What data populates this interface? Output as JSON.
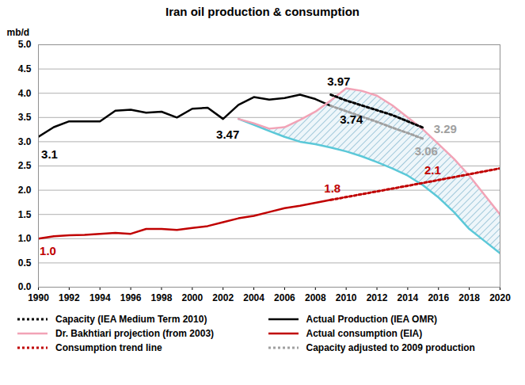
{
  "chart_data": {
    "type": "line",
    "title": "Iran oil production & consumption",
    "y_label": "mb/d",
    "xlim": [
      1990,
      2020
    ],
    "xticks": [
      1990,
      1992,
      1994,
      1996,
      1998,
      2000,
      2002,
      2004,
      2006,
      2008,
      2010,
      2012,
      2014,
      2016,
      2018,
      2020
    ],
    "ylim": [
      0,
      5
    ],
    "yticks": [
      {
        "value": 0,
        "label": "0.0"
      },
      0.5,
      {
        "value": 1,
        "label": "1.0"
      },
      1.5,
      {
        "value": 2,
        "label": "2.0"
      },
      2.5,
      {
        "value": 3,
        "label": "3.0"
      },
      3.5,
      {
        "value": 4,
        "label": "4.0"
      },
      4.5,
      {
        "value": 5,
        "label": "5.0"
      }
    ],
    "grid": true,
    "legend": "bottom",
    "series": [
      {
        "name": "Capacity (IEA Medium Term 2010)",
        "color": "#000000",
        "line_style": "dotted",
        "x": [
          2009,
          2010,
          2011,
          2012,
          2013,
          2014,
          2015
        ],
        "values": [
          3.97,
          3.85,
          3.75,
          3.65,
          3.55,
          3.42,
          3.29
        ]
      },
      {
        "name": "Actual Production (IEA OMR)",
        "color": "#000000",
        "line_style": "solid",
        "x": [
          1990,
          1991,
          1992,
          1993,
          1994,
          1995,
          1996,
          1997,
          1998,
          1999,
          2000,
          2001,
          2002,
          2003,
          2004,
          2005,
          2006,
          2007,
          2008,
          2009
        ],
        "values": [
          3.1,
          3.3,
          3.42,
          3.42,
          3.42,
          3.64,
          3.66,
          3.6,
          3.62,
          3.5,
          3.68,
          3.7,
          3.47,
          3.76,
          3.92,
          3.87,
          3.9,
          3.97,
          3.88,
          3.74
        ]
      },
      {
        "name": "Dr. Bakhtiari projection (from 2003)",
        "color": "#f2a3b6",
        "line_style": "solid",
        "x": [
          2003,
          2004,
          2005,
          2006,
          2007,
          2008,
          2009,
          2010,
          2011,
          2012,
          2013,
          2014,
          2015,
          2016,
          2017,
          2018,
          2019,
          2020
        ],
        "values": [
          3.47,
          3.38,
          3.27,
          3.3,
          3.45,
          3.62,
          3.85,
          4.1,
          4.05,
          3.95,
          3.75,
          3.5,
          3.25,
          2.95,
          2.65,
          2.3,
          1.9,
          1.5
        ]
      },
      {
        "name": "Actual consumption (EIA)",
        "color": "#c00000",
        "line_style": "solid",
        "x": [
          1990,
          1991,
          1992,
          1993,
          1994,
          1995,
          1996,
          1997,
          1998,
          1999,
          2000,
          2001,
          2002,
          2003,
          2004,
          2005,
          2006,
          2007,
          2008,
          2009
        ],
        "values": [
          1.0,
          1.05,
          1.07,
          1.08,
          1.1,
          1.12,
          1.1,
          1.2,
          1.2,
          1.18,
          1.22,
          1.26,
          1.34,
          1.42,
          1.47,
          1.55,
          1.63,
          1.68,
          1.74,
          1.8
        ]
      },
      {
        "name": "Consumption trend line",
        "color": "#c00000",
        "line_style": "dotted",
        "x": [
          2009,
          2015,
          2020
        ],
        "values": [
          1.8,
          2.15,
          2.45
        ]
      },
      {
        "name": "Capacity adjusted to 2009 production",
        "color": "#a0a0a0",
        "line_style": "dotted",
        "x": [
          2009,
          2010,
          2011,
          2012,
          2013,
          2014,
          2015
        ],
        "values": [
          3.74,
          3.63,
          3.52,
          3.41,
          3.29,
          3.18,
          3.06
        ]
      }
    ],
    "band": {
      "color": "#5bc8d8",
      "x": [
        2003,
        2004,
        2005,
        2006,
        2007,
        2008,
        2009,
        2010,
        2011,
        2012,
        2013,
        2014,
        2015,
        2016,
        2017,
        2018,
        2019,
        2020
      ],
      "low": [
        3.47,
        3.35,
        3.22,
        3.1,
        3.0,
        2.95,
        2.88,
        2.8,
        2.7,
        2.58,
        2.45,
        2.3,
        2.1,
        1.85,
        1.55,
        1.2,
        0.95,
        0.7
      ],
      "high": [
        3.47,
        3.38,
        3.27,
        3.3,
        3.45,
        3.62,
        3.85,
        4.1,
        4.05,
        3.95,
        3.75,
        3.5,
        3.25,
        2.95,
        2.65,
        2.3,
        1.9,
        1.5
      ]
    },
    "annotations": [
      {
        "text": "3.1",
        "x": 1990,
        "y": 3.1,
        "color": "#000000"
      },
      {
        "text": "3.47",
        "x": 2002,
        "y": 3.47,
        "color": "#000000"
      },
      {
        "text": "3.97",
        "x": 2009,
        "y": 3.97,
        "color": "#000000"
      },
      {
        "text": "3.74",
        "x": 2009,
        "y": 3.74,
        "color": "#000000"
      },
      {
        "text": "3.29",
        "x": 2015,
        "y": 3.29,
        "color": "#a0a0a0"
      },
      {
        "text": "3.06",
        "x": 2015,
        "y": 3.06,
        "color": "#a0a0a0"
      },
      {
        "text": "1.8",
        "x": 2009,
        "y": 1.8,
        "color": "#c00000"
      },
      {
        "text": "2.1",
        "x": 2015,
        "y": 2.15,
        "color": "#c00000"
      },
      {
        "text": "1.0",
        "x": 1990,
        "y": 1.0,
        "color": "#c00000"
      }
    ]
  }
}
